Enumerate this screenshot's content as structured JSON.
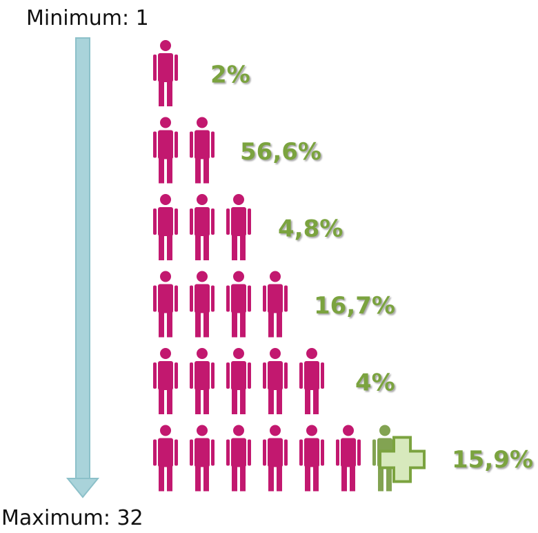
{
  "top_label": "Minimum: 1",
  "bottom_label": "Maximum: 32",
  "rows": [
    {
      "label": "2%"
    },
    {
      "label": "56,6%"
    },
    {
      "label": "4,8%"
    },
    {
      "label": "16,7%"
    },
    {
      "label": "4%"
    },
    {
      "label": "15,9%"
    }
  ]
}
